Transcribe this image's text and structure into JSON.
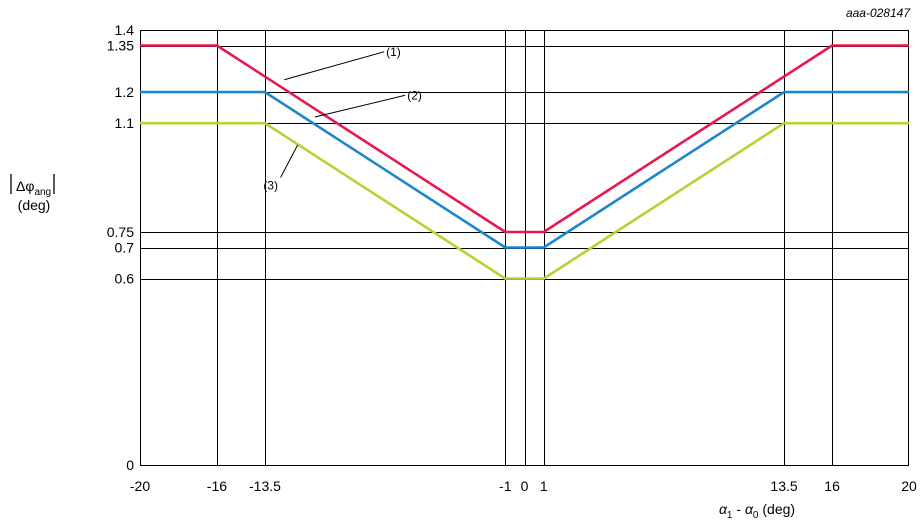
{
  "chart_data": {
    "type": "line",
    "reference": "aaa-028147",
    "ylabel_symbol": "Δφ",
    "ylabel_subscript": "ang",
    "ylabel_unit": "(deg)",
    "xlabel_a1": "α",
    "xlabel_a1_sub": "1",
    "xlabel_mid": " - ",
    "xlabel_a0": "α",
    "xlabel_a0_sub": "0",
    "xlabel_unit": " (deg)",
    "xlim": [
      -20,
      20
    ],
    "ylim": [
      0,
      1.4
    ],
    "x_ticks": [
      {
        "value": -20,
        "label": "-20"
      },
      {
        "value": -16,
        "label": "-16"
      },
      {
        "value": -13.5,
        "label": "-13.5"
      },
      {
        "value": -1,
        "label": "-1"
      },
      {
        "value": 0,
        "label": "0"
      },
      {
        "value": 1,
        "label": "1"
      },
      {
        "value": 13.5,
        "label": "13.5"
      },
      {
        "value": 16,
        "label": "16"
      },
      {
        "value": 20,
        "label": "20"
      }
    ],
    "y_ticks": [
      {
        "value": 0,
        "label": "0"
      },
      {
        "value": 0.6,
        "label": "0.6"
      },
      {
        "value": 0.7,
        "label": "0.7"
      },
      {
        "value": 0.75,
        "label": "0.75"
      },
      {
        "value": 1.1,
        "label": "1.1"
      },
      {
        "value": 1.2,
        "label": "1.2"
      },
      {
        "value": 1.35,
        "label": "1.35"
      },
      {
        "value": 1.4,
        "label": "1.4"
      }
    ],
    "grid": true,
    "series": [
      {
        "label": "(1)",
        "color": "#e8194f",
        "x": [
          -20,
          -16,
          -1,
          1,
          16,
          20
        ],
        "y": [
          1.35,
          1.35,
          0.75,
          0.75,
          1.35,
          1.35
        ],
        "callout_at": [
          -12.5,
          1.24
        ],
        "label_at": [
          -7.2,
          1.33
        ]
      },
      {
        "label": "(2)",
        "color": "#1f86c8",
        "x": [
          -20,
          -13.5,
          -1,
          1,
          13.5,
          20
        ],
        "y": [
          1.2,
          1.2,
          0.7,
          0.7,
          1.2,
          1.2
        ],
        "callout_at": [
          -10.9,
          1.12
        ],
        "label_at": [
          -6.1,
          1.19
        ]
      },
      {
        "label": "(3)",
        "color": "#b5d334",
        "x": [
          -20,
          -13.5,
          -1,
          1,
          13.5,
          20
        ],
        "y": [
          1.1,
          1.1,
          0.6,
          0.6,
          1.1,
          1.1
        ],
        "callout_at": [
          -11.8,
          1.03
        ],
        "label_at": [
          -13.1,
          0.9
        ]
      }
    ]
  }
}
